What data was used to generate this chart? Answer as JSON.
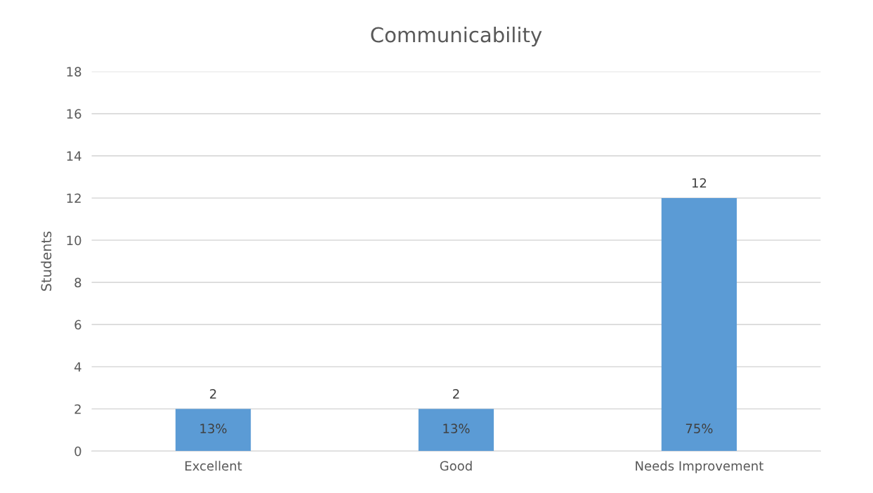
{
  "chart_data": {
    "type": "bar",
    "title": "Communicability",
    "ylabel": "Students",
    "categories": [
      "Excellent",
      "Good",
      "Needs Improvement"
    ],
    "values": [
      2,
      2,
      12
    ],
    "color": "#5b9bd5",
    "ylim": [
      0,
      18
    ],
    "yticks": [
      0,
      2,
      4,
      6,
      8,
      10,
      12,
      14,
      16,
      18
    ],
    "grid": "y",
    "data_labels": true,
    "annotations": [
      "13%",
      "13%",
      "75%"
    ]
  }
}
